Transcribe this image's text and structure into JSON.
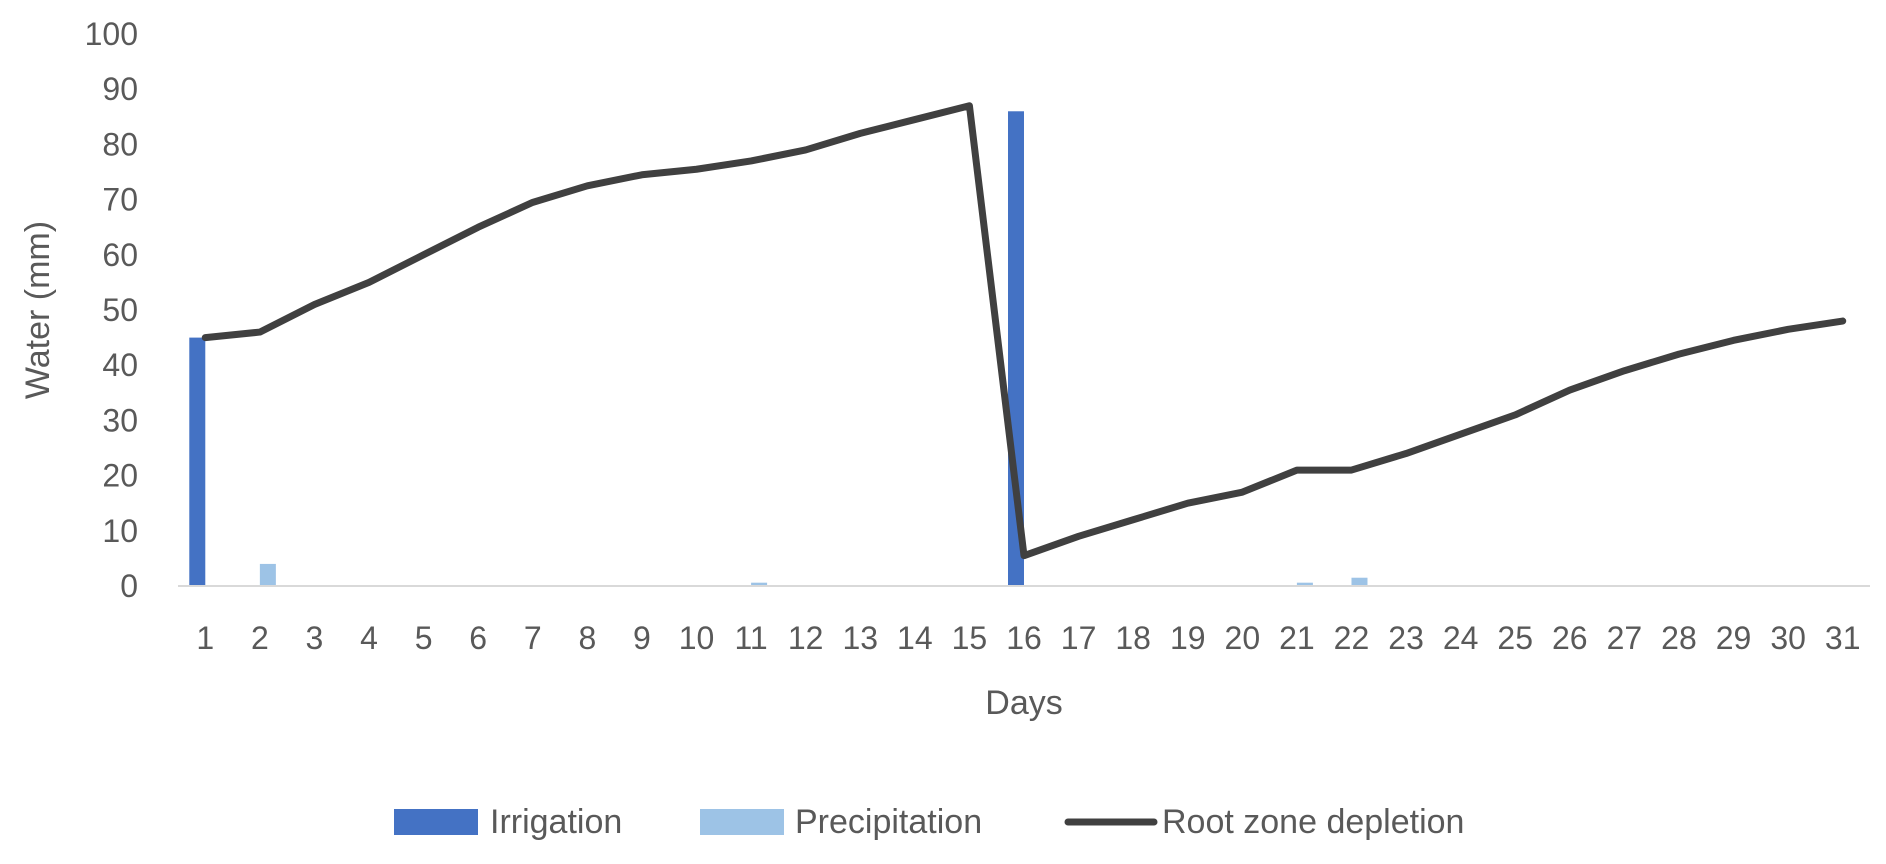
{
  "chart_data": {
    "type": "bar",
    "title": "",
    "xlabel": "Days",
    "ylabel": "Water (mm)",
    "ylim": [
      0,
      100
    ],
    "yticks": [
      "0",
      "10",
      "20",
      "30",
      "40",
      "50",
      "60",
      "70",
      "80",
      "90",
      "100"
    ],
    "grid": false,
    "legend_position": "bottom",
    "categories": [
      "1",
      "2",
      "3",
      "4",
      "5",
      "6",
      "7",
      "8",
      "9",
      "10",
      "11",
      "12",
      "13",
      "14",
      "15",
      "16",
      "17",
      "18",
      "19",
      "20",
      "21",
      "22",
      "23",
      "24",
      "25",
      "26",
      "27",
      "28",
      "29",
      "30",
      "31"
    ],
    "series": [
      {
        "name": "Irrigation",
        "kind": "bar",
        "color": "#4472C4",
        "values": [
          45,
          0,
          0,
          0,
          0,
          0,
          0,
          0,
          0,
          0,
          0,
          0,
          0,
          0,
          0,
          86,
          0,
          0,
          0,
          0,
          0,
          0,
          0,
          0,
          0,
          0,
          0,
          0,
          0,
          0,
          0
        ]
      },
      {
        "name": "Precipitation",
        "kind": "bar",
        "color": "#9DC3E6",
        "values": [
          0,
          4,
          0,
          0,
          0,
          0,
          0,
          0,
          0,
          0,
          0.6,
          0,
          0,
          0,
          0,
          0,
          0,
          0,
          0,
          0,
          0.6,
          1.5,
          0,
          0,
          0,
          0,
          0,
          0,
          0,
          0,
          0
        ]
      },
      {
        "name": "Root zone depletion",
        "kind": "line",
        "color": "#404040",
        "values": [
          45,
          46,
          51,
          55,
          60,
          65,
          69.5,
          72.5,
          74.5,
          75.5,
          77,
          79,
          82,
          84.5,
          87,
          5.5,
          9,
          12,
          15,
          17,
          21,
          21,
          24,
          27.5,
          31,
          35.5,
          39,
          42,
          44.5,
          46.5,
          48
        ]
      }
    ]
  }
}
